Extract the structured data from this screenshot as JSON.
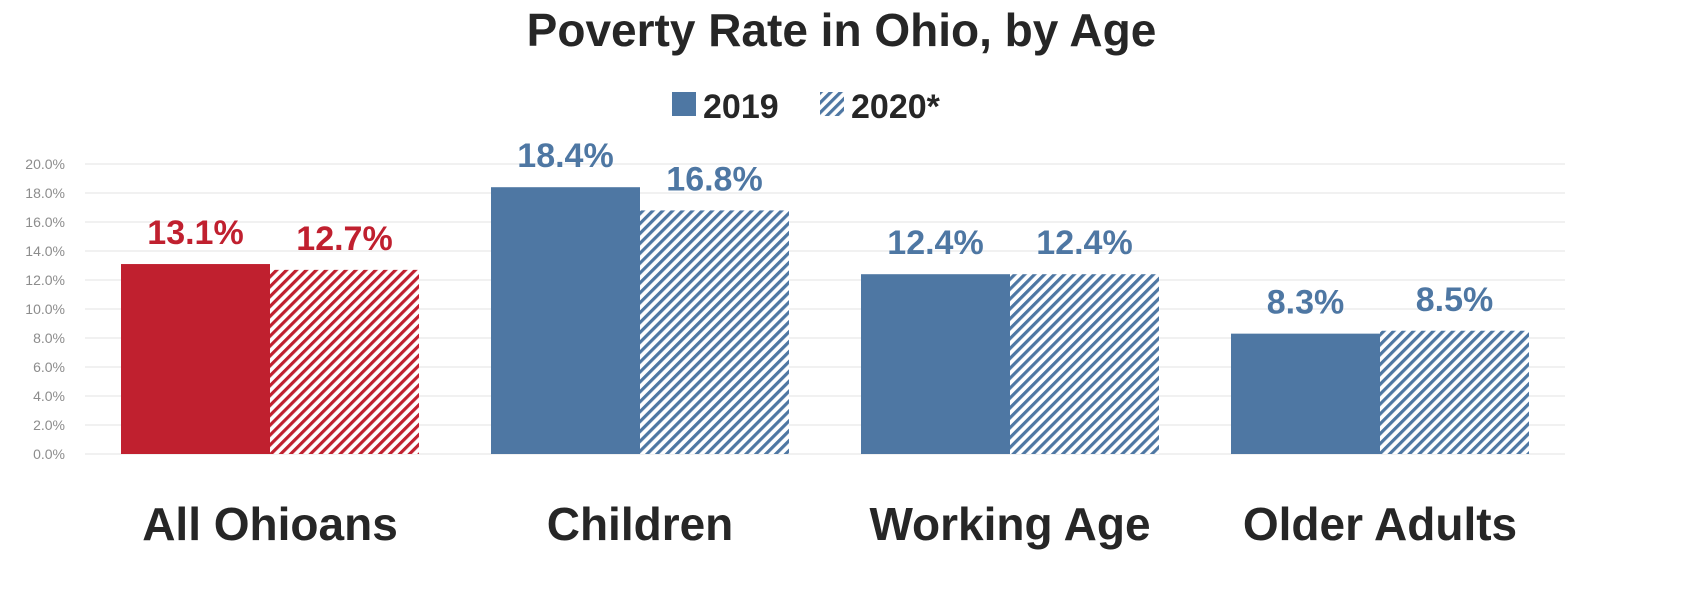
{
  "colors": {
    "blue": "#4e77a3",
    "red": "#c0202f",
    "grid": "#e3e3e3",
    "text": "#262626",
    "tick": "#8c8c8c"
  },
  "chart_data": {
    "type": "bar",
    "title": "Poverty Rate in Ohio, by Age",
    "xlabel": "",
    "ylabel": "",
    "ylim": [
      0,
      20
    ],
    "yticks": [
      "0.0%",
      "2.0%",
      "4.0%",
      "6.0%",
      "8.0%",
      "10.0%",
      "12.0%",
      "14.0%",
      "16.0%",
      "18.0%",
      "20.0%"
    ],
    "grid": true,
    "legend_position": "top-center",
    "categories": [
      "All Ohioans",
      "Children",
      "Working Age",
      "Older Adults"
    ],
    "series": [
      {
        "name": "2019",
        "pattern": "solid",
        "values": [
          13.1,
          18.4,
          12.4,
          8.3
        ],
        "labels": [
          "13.1%",
          "18.4%",
          "12.4%",
          "8.3%"
        ]
      },
      {
        "name": "2020*",
        "pattern": "hatched",
        "values": [
          12.7,
          16.8,
          12.4,
          8.5
        ],
        "labels": [
          "12.7%",
          "16.8%",
          "12.4%",
          "8.5%"
        ]
      }
    ],
    "highlight_category": "All Ohioans"
  }
}
